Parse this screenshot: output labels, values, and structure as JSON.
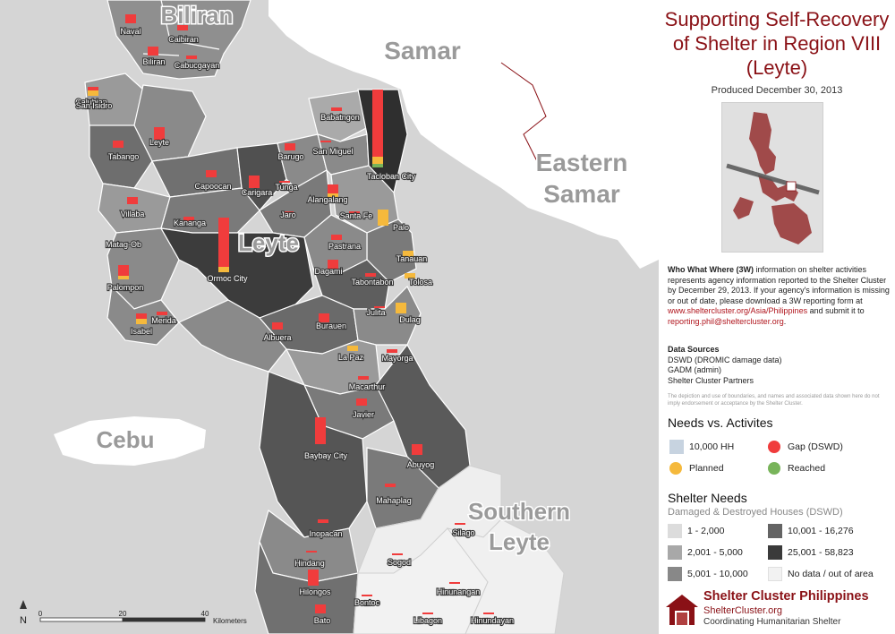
{
  "map": {
    "region_labels": {
      "biliran": "Biliran",
      "samar": "Samar",
      "eastern_samar_1": "Eastern",
      "eastern_samar_2": "Samar",
      "leyte": "Leyte",
      "cebu": "Cebu",
      "southern_leyte_1": "Southern",
      "southern_leyte_2": "Leyte"
    },
    "municipalities": {
      "naval": "Naval",
      "caibiran": "Caibiran",
      "biliran": "Biliran",
      "cabucgayan": "Cabucgayan",
      "calubian": "Calubian",
      "san_isidro": "San Isidro",
      "leyte": "Leyte",
      "tabango": "Tabango",
      "babatngon": "Babatngon",
      "barugo": "Barugo",
      "san_miguel": "San Miguel",
      "capoocan": "Capoocan",
      "carigara": "Carigara",
      "tunga": "Tunga",
      "tacloban": "Tacloban City",
      "villaba": "Villaba",
      "kananga": "Kananga",
      "alangalang": "Alangalang",
      "jaro": "Jaro",
      "santa_fe": "Santa Fe",
      "palo": "Palo",
      "matag_ob": "Matag-Ob",
      "pastrana": "Pastrana",
      "tanauan": "Tanauan",
      "ormoc": "Ormoc City",
      "dagami": "Dagami",
      "palompon": "Palompon",
      "tabontabon": "Tabontabon",
      "tolosa": "Tolosa",
      "merida": "Merida",
      "julita": "Julita",
      "isabel": "Isabel",
      "dulag": "Dulag",
      "burauen": "Burauen",
      "albuera": "Albuera",
      "la_paz": "La Paz",
      "mayorga": "Mayorga",
      "macarthur": "Macarthur",
      "javier": "Javier",
      "baybay": "Baybay City",
      "abuyog": "Abuyog",
      "mahaplag": "Mahaplag",
      "silago": "Silago",
      "inopacan": "Inopacan",
      "sogod": "Sogod",
      "hindang": "Hindang",
      "hilongos": "Hilongos",
      "hinunangan": "Hinunangan",
      "bontoc": "Bontoc",
      "bato": "Bato",
      "libagon": "Libagon",
      "hinundayan": "Hinundayan"
    },
    "scale": {
      "ticks": [
        "0",
        "20",
        "40"
      ],
      "unit": "Kilometers"
    },
    "north_arrow": "N",
    "colors": {
      "gap": "#f03c3c",
      "planned": "#f5b93c",
      "reached": "#78b45a"
    }
  },
  "panel": {
    "title": "Supporting Self-Recovery of Shelter in Region VIII (Leyte)",
    "produced": "Produced December 30, 2013",
    "info_lead": "Who What Where (3W)",
    "info_body": " information on shelter activities represents agency information reported to the Shelter Cluster by December 29, 2013. If your agency's information is missing or out of date, please download a 3W reporting form at ",
    "info_link": "www.sheltercluster.org/Asia/Philippines",
    "info_mid": " and submit it to ",
    "info_email": "reporting.phil@sheltercluster.org",
    "info_end": ".",
    "sources_title": "Data Sources",
    "sources": [
      "DSWD (DROMIC damage data)",
      "GADM (admin)",
      "Shelter Cluster Partners"
    ],
    "disclaimer": "The depiction and use of boundaries, and names and associated data shown here do not imply endorsement or acceptance by the Shelter Cluster.",
    "needs_title": "Needs vs. Activites",
    "needs_legend": {
      "hh": "10,000 HH",
      "gap": "Gap (DSWD)",
      "planned": "Planned",
      "reached": "Reached"
    },
    "shelter_title": "Shelter Needs",
    "shelter_sub": "Damaged & Destroyed Houses (DSWD)",
    "classes": [
      {
        "label": "1 - 2,000",
        "color": "#dcdcdc"
      },
      {
        "label": "2,001 - 5,000",
        "color": "#a8a8a8"
      },
      {
        "label": "5,001 - 10,000",
        "color": "#888888"
      },
      {
        "label": "10,001 - 16,276",
        "color": "#646464"
      },
      {
        "label": "25,001 - 58,823",
        "color": "#3a3a3a"
      },
      {
        "label": "No data / out of area",
        "color": "#f2f2f2"
      }
    ],
    "logo": {
      "name": "Shelter Cluster Philippines",
      "url": "ShelterCluster.org",
      "tagline": "Coordinating Humanitarian Shelter"
    }
  }
}
